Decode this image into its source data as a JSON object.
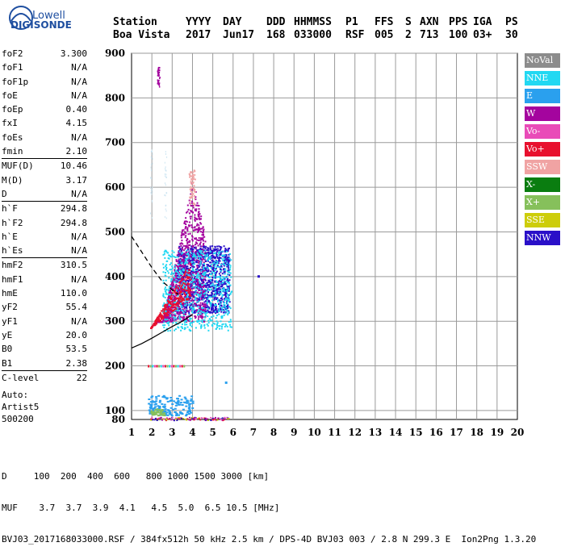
{
  "logo": {
    "line1": "Lowell",
    "line2": "DIGISONDE"
  },
  "header": {
    "labels": [
      "Station",
      "YYYY",
      "DAY",
      "DDD",
      "HHMMSS",
      "P1",
      "FFS",
      "S",
      "AXN",
      "PPS",
      "IGA",
      "PS"
    ],
    "values": [
      "Boa Vista",
      "2017",
      "Jun17",
      "168",
      "033000",
      "RSF",
      "005",
      "2",
      "713",
      "100",
      "03+",
      "30"
    ]
  },
  "params": [
    {
      "group": [
        {
          "label": "foF2",
          "value": "3.300"
        },
        {
          "label": "foF1",
          "value": "N/A"
        },
        {
          "label": "foF1p",
          "value": "N/A"
        },
        {
          "label": "foE",
          "value": "N/A"
        },
        {
          "label": "foEp",
          "value": "0.40"
        },
        {
          "label": "fxI",
          "value": "4.15"
        },
        {
          "label": "foEs",
          "value": "N/A"
        },
        {
          "label": "fmin",
          "value": "2.10"
        }
      ]
    },
    {
      "group": [
        {
          "label": "MUF(D)",
          "value": "10.46"
        },
        {
          "label": "M(D)",
          "value": "3.17"
        },
        {
          "label": "D",
          "value": "N/A"
        }
      ]
    },
    {
      "group": [
        {
          "label": "h`F",
          "value": "294.8"
        },
        {
          "label": "h`F2",
          "value": "294.8"
        },
        {
          "label": "h`E",
          "value": "N/A"
        },
        {
          "label": "h`Es",
          "value": "N/A"
        }
      ]
    },
    {
      "group": [
        {
          "label": "hmF2",
          "value": "310.5"
        },
        {
          "label": "hmF1",
          "value": "N/A"
        },
        {
          "label": "hmE",
          "value": "110.0"
        },
        {
          "label": "yF2",
          "value": "55.4"
        },
        {
          "label": "yF1",
          "value": "N/A"
        },
        {
          "label": "yE",
          "value": "20.0"
        },
        {
          "label": "B0",
          "value": "53.5"
        },
        {
          "label": "B1",
          "value": "2.38"
        }
      ]
    },
    {
      "group": [
        {
          "label": "C-level",
          "value": "22"
        }
      ]
    }
  ],
  "auto": {
    "line1": "Auto:",
    "line2": "Artist5",
    "line3": "500200"
  },
  "legend": [
    {
      "label": "NoVal",
      "color": "#8c8c8c"
    },
    {
      "label": "NNE",
      "color": "#22d8f2"
    },
    {
      "label": "E",
      "color": "#2aa0ee"
    },
    {
      "label": "W",
      "color": "#a4049e"
    },
    {
      "label": "Vo-",
      "color": "#e94bb8"
    },
    {
      "label": "Vo+",
      "color": "#e8102e"
    },
    {
      "label": "SSW",
      "color": "#f0a3a3"
    },
    {
      "label": "X-",
      "color": "#0a7d10"
    },
    {
      "label": "X+",
      "color": "#86c05b"
    },
    {
      "label": "SSE",
      "color": "#cdcd0a"
    },
    {
      "label": "NNW",
      "color": "#2a10c8"
    }
  ],
  "footer": {
    "line1": "D     100  200  400  600   800 1000 1500 3000 [km]",
    "line2": "MUF    3.7  3.7  3.9  4.1   4.5  5.0  6.5 10.5 [MHz]",
    "line3": "BVJ03_2017168033000.RSF / 384fx512h 50 kHz 2.5 km / DPS-4D BVJ03 003 / 2.8 N 299.3 E  Ion2Png 1.3.20"
  },
  "chart_data": {
    "type": "scatter",
    "xlim": [
      1,
      20
    ],
    "ylim": [
      80,
      900
    ],
    "x_ticks": [
      "1",
      "2",
      "3",
      "4",
      "5",
      "6",
      "7",
      "8",
      "9",
      "10",
      "11",
      "12",
      "13",
      "14",
      "15",
      "16",
      "17",
      "18",
      "19",
      "20"
    ],
    "y_ticks": [
      "100",
      "200",
      "300",
      "400",
      "500",
      "600",
      "700",
      "800",
      "900"
    ],
    "y_bottom_label": "80",
    "grid": true,
    "legend_position": "right",
    "traces": [
      {
        "name": "NNW",
        "color": "#2a10c8",
        "region": {
          "x": [
            3.2,
            5.8
          ],
          "y": [
            320,
            470
          ]
        }
      },
      {
        "name": "W",
        "color": "#a4049e",
        "region": {
          "x": [
            2.2,
            4.6
          ],
          "y": [
            300,
            620
          ]
        }
      },
      {
        "name": "NNE",
        "color": "#22d8f2",
        "region": {
          "x": [
            2.5,
            5.9
          ],
          "y": [
            280,
            460
          ]
        }
      },
      {
        "name": "Vo+",
        "color": "#e8102e",
        "region": {
          "x": [
            1.9,
            3.9
          ],
          "y": [
            285,
            400
          ]
        }
      },
      {
        "name": "SSW",
        "color": "#f0a3a3",
        "region": {
          "x": [
            3.8,
            4.1
          ],
          "y": [
            560,
            640
          ]
        }
      },
      {
        "name": "E",
        "color": "#2aa0ee",
        "region": {
          "x": [
            1.8,
            4.0
          ],
          "y": [
            90,
            135
          ]
        }
      },
      {
        "name": "X+",
        "color": "#86c05b",
        "region": {
          "x": [
            1.9,
            2.6
          ],
          "y": [
            90,
            105
          ]
        }
      }
    ],
    "profile_curve": {
      "x": [
        1.0,
        1.5,
        2.0,
        2.5,
        3.0,
        3.3
      ],
      "y": [
        490,
        455,
        420,
        390,
        370,
        360
      ]
    },
    "trace_curve": {
      "x": [
        1.0,
        1.5,
        2.0,
        2.5,
        3.0,
        3.5,
        4.0
      ],
      "y": [
        240,
        250,
        262,
        275,
        288,
        300,
        315
      ]
    }
  }
}
